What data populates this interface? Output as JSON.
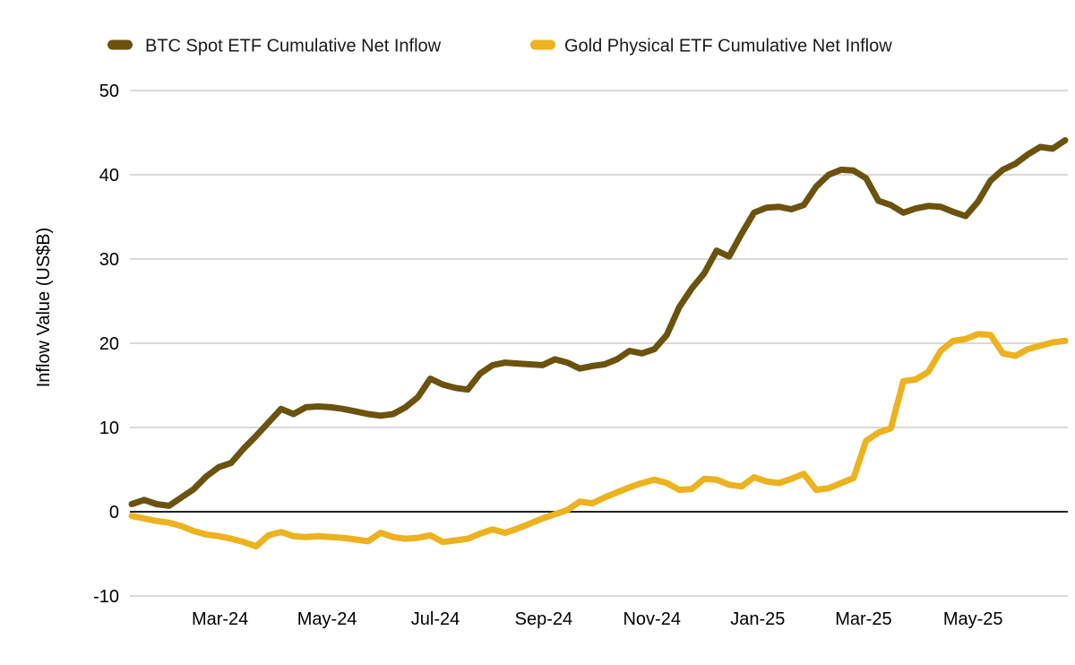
{
  "page": {
    "background": "#ffffff"
  },
  "colors": {
    "btc_line": "#6B520F",
    "gold_line": "#ECB21F",
    "gridline": "#d9d9d9",
    "zero_line": "#222222",
    "tick_text": "#000000",
    "legend_text": "#1a1a1a"
  },
  "legend": {
    "items": [
      {
        "label": "BTC Spot ETF Cumulative Net Inflow",
        "color": "#6B520F"
      },
      {
        "label": "Gold Physical ETF Cumulative Net Inflow",
        "color": "#ECB21F"
      }
    ]
  },
  "chart_data": {
    "type": "line",
    "title": "",
    "xlabel": "",
    "ylabel": "Inflow Value (US$B)",
    "ylim": [
      -10,
      50
    ],
    "y_ticks": [
      50,
      40,
      30,
      20,
      10,
      0,
      -10
    ],
    "grid": "horizontal-only",
    "legend_position": "top",
    "x_tick_labels": [
      "Mar-24",
      "May-24",
      "Jul-24",
      "Sep-24",
      "Nov-24",
      "Jan-25",
      "Mar-25",
      "May-25"
    ],
    "x_tick_indices": [
      7.1,
      15.7,
      24.4,
      33.1,
      41.8,
      50.3,
      58.8,
      67.6
    ],
    "x_description": "weekly points, Jan-2024 through Jun-2025",
    "series": [
      {
        "name": "BTC Spot ETF Cumulative Net Inflow",
        "color": "#6B520F",
        "values": [
          0.9,
          1.4,
          0.9,
          0.7,
          1.7,
          2.7,
          4.2,
          5.3,
          5.8,
          7.5,
          9.0,
          10.6,
          12.2,
          11.6,
          12.4,
          12.5,
          12.4,
          12.2,
          11.9,
          11.6,
          11.4,
          11.6,
          12.4,
          13.6,
          15.8,
          15.1,
          14.7,
          14.5,
          16.4,
          17.4,
          17.7,
          17.6,
          17.5,
          17.4,
          18.1,
          17.7,
          17.0,
          17.3,
          17.5,
          18.1,
          19.1,
          18.8,
          19.3,
          21.0,
          24.3,
          26.5,
          28.3,
          31.0,
          30.3,
          33.0,
          35.5,
          36.1,
          36.2,
          35.9,
          36.4,
          38.6,
          40.0,
          40.6,
          40.5,
          39.6,
          36.9,
          36.4,
          35.5,
          36.0,
          36.3,
          36.2,
          35.6,
          35.1,
          36.8,
          39.3,
          40.6,
          41.3,
          42.4,
          43.3,
          43.1,
          44.1
        ]
      },
      {
        "name": "Gold Physical ETF Cumulative Net Inflow",
        "color": "#ECB21F",
        "values": [
          -0.5,
          -0.8,
          -1.1,
          -1.3,
          -1.7,
          -2.3,
          -2.7,
          -2.9,
          -3.2,
          -3.6,
          -4.1,
          -2.8,
          -2.4,
          -2.9,
          -3.0,
          -2.9,
          -3.0,
          -3.1,
          -3.3,
          -3.5,
          -2.5,
          -3.0,
          -3.2,
          -3.1,
          -2.8,
          -3.6,
          -3.4,
          -3.2,
          -2.6,
          -2.1,
          -2.5,
          -2.0,
          -1.4,
          -0.8,
          -0.3,
          0.2,
          1.2,
          1.0,
          1.7,
          2.3,
          2.9,
          3.4,
          3.8,
          3.4,
          2.6,
          2.7,
          3.9,
          3.8,
          3.2,
          3.0,
          4.1,
          3.6,
          3.4,
          3.9,
          4.5,
          2.6,
          2.8,
          3.4,
          4.0,
          8.4,
          9.4,
          9.9,
          15.5,
          15.7,
          16.6,
          19.1,
          20.3,
          20.5,
          21.1,
          21.0,
          18.8,
          18.5,
          19.3,
          19.7,
          20.1,
          20.3
        ]
      }
    ]
  }
}
